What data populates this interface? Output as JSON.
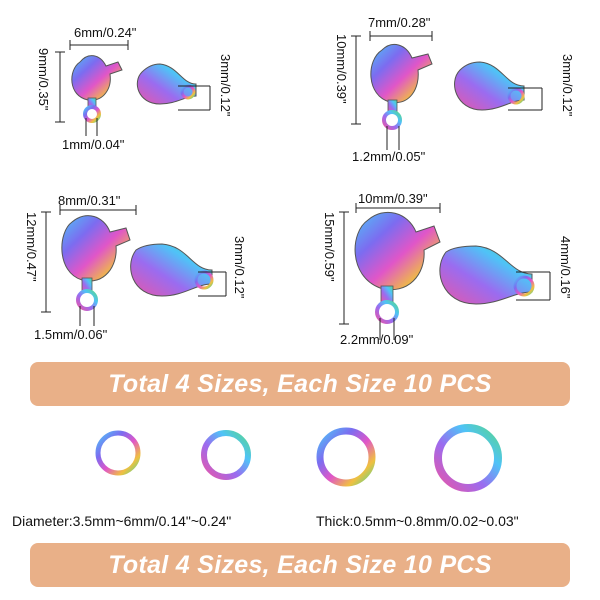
{
  "sizes": [
    {
      "width": "6mm/0.24\"",
      "height": "9mm/0.35\"",
      "hole": "1mm/0.04\"",
      "thick": "3mm/0.12\""
    },
    {
      "width": "7mm/0.28\"",
      "height": "10mm/0.39\"",
      "hole": "1.2mm/0.05\"",
      "thick": "3mm/0.12\""
    },
    {
      "width": "8mm/0.31\"",
      "height": "12mm/0.47\"",
      "hole": "1.5mm/0.06\"",
      "thick": "3mm/0.12\""
    },
    {
      "width": "10mm/0.39\"",
      "height": "15mm/0.59\"",
      "hole": "2.2mm/0.09\"",
      "thick": "4mm/0.16\""
    }
  ],
  "banner_top": "Total 4 Sizes, Each Size 10 PCS",
  "banner_bottom": "Total 4 Sizes, Each Size 10 PCS",
  "rings": {
    "diameter": "Diameter:3.5mm~6mm/0.14\"~0.24\"",
    "thick": "Thick:0.5mm~0.8mm/0.02~0.03\""
  },
  "colors": {
    "banner": "#e9b088",
    "rainbow": [
      "#4fc3f7",
      "#7c6cf0",
      "#e056c8",
      "#f0c040",
      "#58d68d"
    ]
  }
}
